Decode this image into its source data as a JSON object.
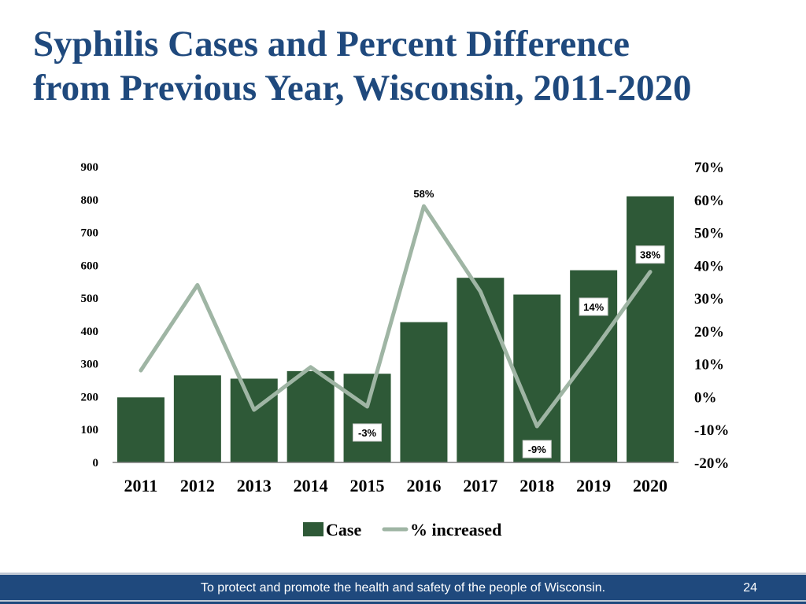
{
  "title": {
    "line1": "Syphilis Cases and Percent Difference",
    "line2": "from Previous Year, Wisconsin, 2011-2020"
  },
  "chart_data": {
    "type": "bar",
    "categories": [
      "2011",
      "2012",
      "2013",
      "2014",
      "2015",
      "2016",
      "2017",
      "2018",
      "2019",
      "2020"
    ],
    "series": [
      {
        "name": "Case",
        "type": "bar",
        "axis": "left",
        "color": "#2e5937",
        "values": [
          198,
          265,
          255,
          278,
          270,
          427,
          562,
          511,
          585,
          810
        ]
      },
      {
        "name": "% increased",
        "type": "line",
        "axis": "right",
        "color": "#9fb5a4",
        "values": [
          8,
          34,
          -4,
          9,
          -3,
          58,
          32,
          -9,
          14,
          38
        ]
      }
    ],
    "y_left": {
      "min": 0,
      "max": 900,
      "ticks": [
        0,
        100,
        200,
        300,
        400,
        500,
        600,
        700,
        800,
        900
      ],
      "tick_labels": [
        "0",
        "100",
        "200",
        "300",
        "400",
        "500",
        "600",
        "700",
        "800",
        "900"
      ]
    },
    "y_right": {
      "min": -20,
      "max": 70,
      "ticks": [
        -20,
        -10,
        0,
        10,
        20,
        30,
        40,
        50,
        60,
        70
      ],
      "tick_labels": [
        "-20%",
        "-10%",
        "0%",
        "10%",
        "20%",
        "30%",
        "40%",
        "50%",
        "60%",
        "70%"
      ]
    },
    "data_labels": [
      {
        "category": "2015",
        "text": "-3%",
        "boxed": true
      },
      {
        "category": "2016",
        "text": "58%",
        "boxed": false
      },
      {
        "category": "2018",
        "text": "-9%",
        "boxed": true
      },
      {
        "category": "2019",
        "text": "14%",
        "boxed": true
      },
      {
        "category": "2020",
        "text": "38%",
        "boxed": true
      }
    ],
    "legend": {
      "position": "bottom",
      "items": [
        "Case",
        "% increased"
      ]
    },
    "grid": false
  },
  "footer": {
    "text": "To protect and promote the health and safety of the people of Wisconsin.",
    "page_number": "24"
  }
}
